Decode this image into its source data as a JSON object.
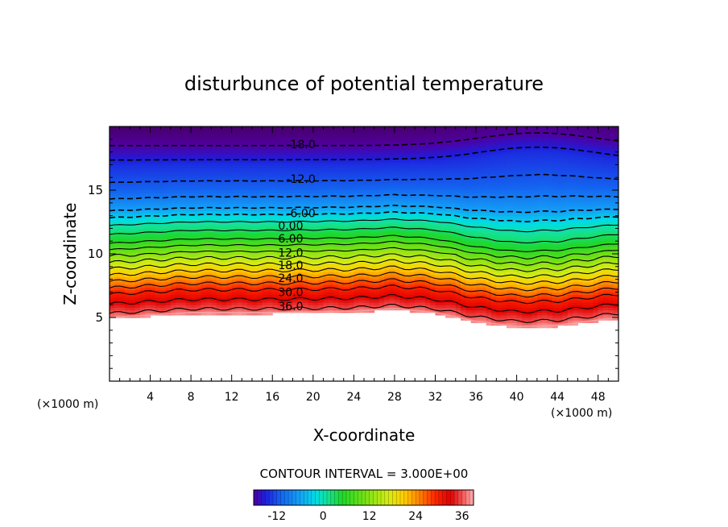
{
  "chart_data": {
    "type": "heatmap",
    "title": "disturbunce of potential temperature",
    "xlabel": "X-coordinate",
    "ylabel": "Z-coordinate",
    "x_unit": "(×1000 m)",
    "y_unit": "(×1000 m)",
    "xlim": [
      0,
      50
    ],
    "ylim": [
      0,
      20
    ],
    "x_ticks": [
      4,
      8,
      12,
      16,
      20,
      24,
      28,
      32,
      36,
      40,
      44,
      48
    ],
    "y_ticks": [
      5,
      10,
      15
    ],
    "contour_interval_label": "CONTOUR INTERVAL = 3.000E+00",
    "contour_interval": 3.0,
    "colorbar": {
      "range": [
        -18,
        39
      ],
      "tick_values": [
        -12,
        0,
        12,
        24,
        36
      ],
      "tick_labels": [
        "-12",
        "0",
        "12",
        "24",
        "36"
      ]
    },
    "contour_labels": [
      {
        "text": "-18.0",
        "value": -18,
        "x": 18.8,
        "z": 18.6
      },
      {
        "text": "-12.0",
        "value": -12,
        "x": 18.8,
        "z": 15.9
      },
      {
        "text": "-6.00",
        "value": -6,
        "x": 18.8,
        "z": 13.2
      },
      {
        "text": "0.00",
        "value": 0,
        "x": 17.8,
        "z": 12.2
      },
      {
        "text": "6.00",
        "value": 6,
        "x": 17.8,
        "z": 11.2
      },
      {
        "text": "12.0",
        "value": 12,
        "x": 17.8,
        "z": 10.1
      },
      {
        "text": "18.0",
        "value": 18,
        "x": 17.8,
        "z": 9.1
      },
      {
        "text": "24.0",
        "value": 24,
        "x": 17.8,
        "z": 8.1
      },
      {
        "text": "30.0",
        "value": 30,
        "x": 17.8,
        "z": 7.0
      },
      {
        "text": "36.0",
        "value": 36,
        "x": 17.8,
        "z": 5.9
      }
    ],
    "field_profile": {
      "z_levels": [
        4.8,
        5.5,
        7.0,
        9.0,
        11.0,
        12.6,
        13.5,
        15.0,
        17.0,
        18.5,
        19.9
      ],
      "values": [
        39,
        36,
        30,
        18,
        6,
        -1,
        -6,
        -11,
        -14,
        -18,
        -21
      ]
    },
    "terrain_bottom": {
      "x": [
        0,
        8,
        16,
        24,
        28,
        32,
        36,
        40,
        44,
        48,
        50
      ],
      "z": [
        5.0,
        5.4,
        5.4,
        5.5,
        5.7,
        5.4,
        4.7,
        4.3,
        4.4,
        4.8,
        5.0
      ]
    },
    "grid": false
  }
}
